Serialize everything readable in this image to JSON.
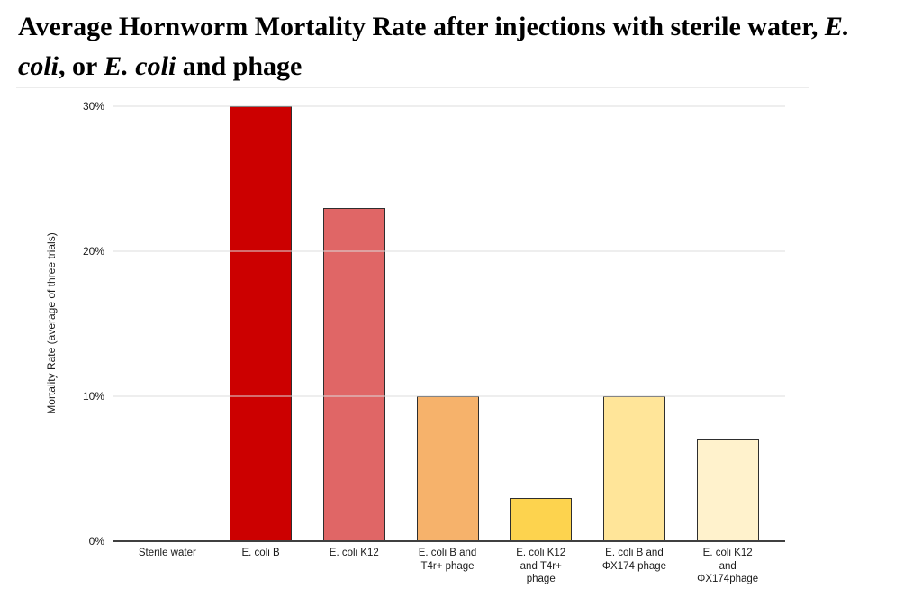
{
  "title": {
    "lines": [
      [
        {
          "text": "Average Hornworm Mortality Rate after injections with sterile water, ",
          "italic": false
        },
        {
          "text": "E.",
          "italic": true
        }
      ],
      [
        {
          "text": "coli",
          "italic": true
        },
        {
          "text": ", or ",
          "italic": false
        },
        {
          "text": "E. coli",
          "italic": true
        },
        {
          "text": " and phage",
          "italic": false
        }
      ]
    ]
  },
  "chart_data": {
    "type": "bar",
    "title": "Average Hornworm Mortality Rate after injections with sterile water, E. coli, or E. coli and phage",
    "categories": [
      "Sterile water",
      "E. coli B",
      "E. coli K12",
      "E. coli B and T4r+ phage",
      "E. coli K12 and T4r+ phage",
      "E. coli B and ΦX174 phage",
      "E. coli K12 and ΦX174phage"
    ],
    "category_label_lines": [
      [
        "Sterile water"
      ],
      [
        "E. coli B"
      ],
      [
        "E. coli K12"
      ],
      [
        "E. coli B and",
        "T4r+ phage"
      ],
      [
        "E. coli K12",
        "and T4r+",
        "phage"
      ],
      [
        "E. coli B and",
        "ΦX174 phage"
      ],
      [
        "E. coli K12",
        "and",
        "ΦX174phage"
      ]
    ],
    "values": [
      0,
      30,
      23,
      10,
      3,
      10,
      7
    ],
    "bar_colors": [
      "",
      "#cc0000",
      "#e06666",
      "#f6b26b",
      "#fdd34e",
      "#ffe599",
      "#fff2cc"
    ],
    "bar_border_color": "#2e2e2e",
    "xlabel": "",
    "ylabel": "Mortality Rate (average of three trials)",
    "ylim": [
      0,
      30
    ],
    "yticks": [
      {
        "value": 0,
        "label": "0%"
      },
      {
        "value": 10,
        "label": "10%"
      },
      {
        "value": 20,
        "label": "20%"
      },
      {
        "value": 30,
        "label": "30%"
      }
    ],
    "grid": true,
    "grid_color": "#dcdcdc",
    "axis_color": "#404040",
    "legend_position": "none"
  }
}
